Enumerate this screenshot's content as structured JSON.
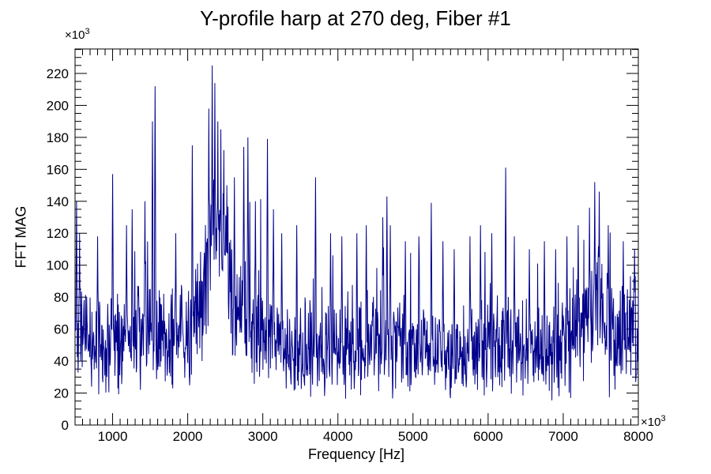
{
  "title": "Y-profile harp at 270 deg, Fiber #1",
  "axes": {
    "x": {
      "label": "Frequency [Hz]",
      "multiplier_base": "×10",
      "multiplier_exp": "3"
    },
    "y": {
      "label": "FFT MAG",
      "multiplier_base": "×10",
      "multiplier_exp": "3"
    }
  },
  "chart_data": {
    "type": "line",
    "title": "Y-profile harp at 270 deg, Fiber #1",
    "xlabel": "Frequency [Hz]",
    "ylabel": "FFT MAG",
    "x_unit_multiplier": 1000,
    "y_unit_multiplier": 1000,
    "xlim": [
      500,
      8000
    ],
    "ylim": [
      0,
      235.3
    ],
    "x_major_ticks": [
      1000,
      2000,
      3000,
      4000,
      5000,
      6000,
      7000,
      8000
    ],
    "x_minor_step": 100,
    "y_major_ticks": [
      0,
      20,
      40,
      60,
      80,
      100,
      120,
      140,
      160,
      180,
      200,
      220
    ],
    "y_minor_step": 5,
    "grid": false,
    "legend": null,
    "line_color": "#00008B",
    "n_points": 1500,
    "noise_model": {
      "seed": 42,
      "k_mean": 0.9,
      "spike_probability": 0.05,
      "spike_max_factor": 2.6,
      "clamp_max": 231,
      "floor_envelope": [
        [
          500,
          25
        ],
        [
          700,
          15
        ],
        [
          1500,
          15
        ],
        [
          2100,
          20
        ],
        [
          2280,
          45
        ],
        [
          2330,
          80
        ],
        [
          2400,
          85
        ],
        [
          2470,
          70
        ],
        [
          2550,
          50
        ],
        [
          2650,
          30
        ],
        [
          2800,
          20
        ],
        [
          3000,
          18
        ],
        [
          3500,
          12
        ],
        [
          4000,
          12
        ],
        [
          4500,
          15
        ],
        [
          5000,
          12
        ],
        [
          5500,
          12
        ],
        [
          6000,
          12
        ],
        [
          6500,
          12
        ],
        [
          7000,
          12
        ],
        [
          7300,
          20
        ],
        [
          7450,
          28
        ],
        [
          7600,
          15
        ],
        [
          8000,
          25
        ]
      ],
      "amplitude_envelope": [
        [
          500,
          45
        ],
        [
          800,
          38
        ],
        [
          1000,
          40
        ],
        [
          1600,
          42
        ],
        [
          2000,
          40
        ],
        [
          2250,
          50
        ],
        [
          2420,
          45
        ],
        [
          2550,
          50
        ],
        [
          2700,
          45
        ],
        [
          3050,
          48
        ],
        [
          3400,
          38
        ],
        [
          4000,
          36
        ],
        [
          4600,
          45
        ],
        [
          5000,
          36
        ],
        [
          5600,
          36
        ],
        [
          6200,
          42
        ],
        [
          6800,
          36
        ],
        [
          7300,
          45
        ],
        [
          7450,
          50
        ],
        [
          7700,
          38
        ],
        [
          8000,
          42
        ]
      ]
    },
    "peaks": [
      [
        520,
        140
      ],
      [
        560,
        120
      ],
      [
        800,
        118
      ],
      [
        1000,
        157
      ],
      [
        1185,
        125
      ],
      [
        1260,
        135
      ],
      [
        1430,
        140
      ],
      [
        1530,
        190
      ],
      [
        1565,
        212
      ],
      [
        1840,
        120
      ],
      [
        2060,
        175
      ],
      [
        2280,
        198
      ],
      [
        2325,
        225
      ],
      [
        2360,
        214
      ],
      [
        2400,
        190
      ],
      [
        2440,
        185
      ],
      [
        2480,
        172
      ],
      [
        2520,
        150
      ],
      [
        2620,
        155
      ],
      [
        2745,
        174
      ],
      [
        2800,
        180
      ],
      [
        2900,
        140
      ],
      [
        3060,
        179
      ],
      [
        3140,
        135
      ],
      [
        3250,
        120
      ],
      [
        3450,
        125
      ],
      [
        3700,
        155
      ],
      [
        3900,
        120
      ],
      [
        4050,
        118
      ],
      [
        4250,
        120
      ],
      [
        4380,
        125
      ],
      [
        4600,
        130
      ],
      [
        4655,
        143
      ],
      [
        4700,
        125
      ],
      [
        4900,
        115
      ],
      [
        5080,
        118
      ],
      [
        5245,
        139
      ],
      [
        5400,
        115
      ],
      [
        5550,
        110
      ],
      [
        5760,
        118
      ],
      [
        5900,
        125
      ],
      [
        6050,
        120
      ],
      [
        6235,
        161
      ],
      [
        6350,
        118
      ],
      [
        6550,
        110
      ],
      [
        6750,
        115
      ],
      [
        6900,
        110
      ],
      [
        7050,
        118
      ],
      [
        7200,
        125
      ],
      [
        7350,
        136
      ],
      [
        7420,
        152
      ],
      [
        7480,
        146
      ],
      [
        7600,
        125
      ],
      [
        7800,
        115
      ],
      [
        7950,
        110
      ]
    ]
  }
}
